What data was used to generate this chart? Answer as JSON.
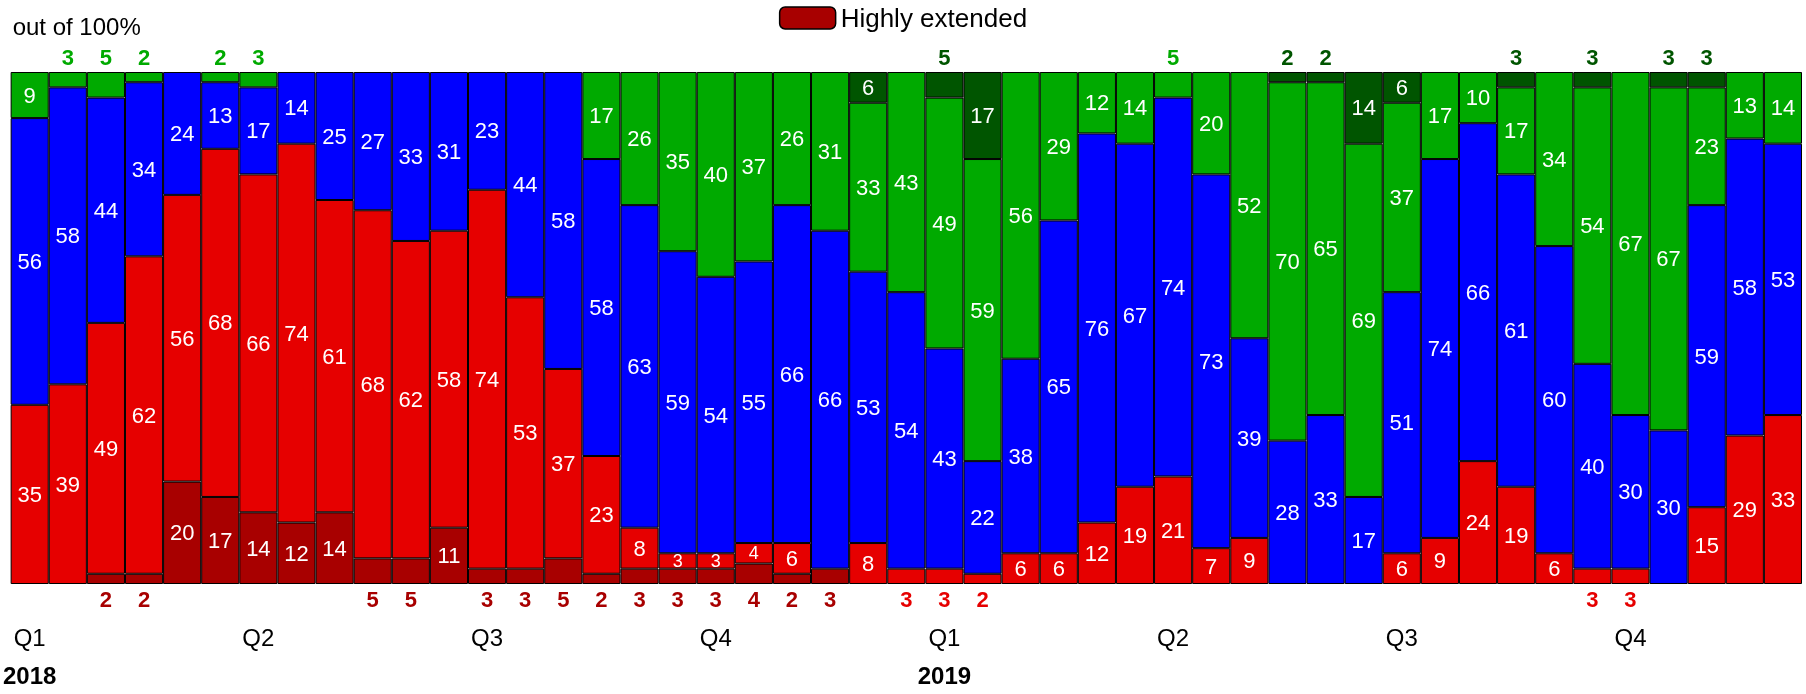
{
  "chart_data": {
    "type": "bar",
    "stacked": true,
    "ylabel": "out of 100%",
    "categories": [
      "Q1\n2018",
      null,
      null,
      null,
      null,
      null,
      "Q2",
      null,
      null,
      null,
      null,
      null,
      "Q3",
      null,
      null,
      null,
      null,
      null,
      "Q4",
      null,
      null,
      null,
      null,
      null,
      "Q1\n2019",
      null,
      null,
      null,
      null,
      null,
      "Q2",
      null,
      null,
      null,
      null,
      null,
      "Q3",
      null,
      null,
      null,
      null,
      null,
      "Q4",
      null,
      null,
      null,
      null
    ],
    "ylim": [
      0,
      100
    ],
    "tick_labels": "x",
    "grid": false,
    "legend": "top",
    "data_labels": true,
    "series": [
      {
        "name": "Highly extended",
        "color": "#a80000",
        "values": [
          null,
          null,
          2,
          2,
          20,
          17,
          14,
          12,
          14,
          5,
          5,
          11,
          3,
          3,
          5,
          2,
          3,
          3,
          3,
          4,
          2,
          3,
          null,
          null,
          null,
          null,
          null,
          null,
          null,
          null,
          null,
          null,
          null,
          null,
          null,
          null,
          null,
          null,
          null,
          null,
          null,
          null,
          null,
          null,
          null,
          null,
          null
        ]
      },
      {
        "color": "#e60000",
        "values": [
          35,
          39,
          49,
          62,
          56,
          68,
          66,
          74,
          61,
          68,
          62,
          58,
          74,
          53,
          37,
          23,
          8,
          3,
          3,
          4,
          6,
          null,
          8,
          3,
          3,
          2,
          6,
          6,
          12,
          19,
          21,
          7,
          9,
          null,
          null,
          null,
          6,
          9,
          24,
          19,
          6,
          3,
          3,
          null,
          15,
          29,
          33
        ]
      },
      {
        "color": "#0000ff",
        "values": [
          56,
          58,
          44,
          34,
          24,
          13,
          17,
          14,
          25,
          27,
          33,
          31,
          23,
          44,
          58,
          58,
          63,
          59,
          54,
          55,
          66,
          66,
          53,
          54,
          43,
          22,
          38,
          65,
          76,
          67,
          74,
          73,
          39,
          28,
          33,
          17,
          51,
          74,
          66,
          61,
          60,
          40,
          30,
          30,
          59,
          58,
          53
        ]
      },
      {
        "color": "#00aa00",
        "values": [
          9,
          3,
          5,
          2,
          null,
          2,
          3,
          null,
          null,
          null,
          null,
          null,
          null,
          null,
          null,
          17,
          26,
          35,
          40,
          37,
          26,
          31,
          33,
          43,
          49,
          59,
          56,
          29,
          12,
          14,
          5,
          20,
          52,
          70,
          65,
          69,
          37,
          17,
          10,
          17,
          34,
          54,
          67,
          67,
          23,
          13,
          14
        ]
      },
      {
        "color": "#005500",
        "values": [
          null,
          null,
          null,
          null,
          null,
          null,
          null,
          null,
          null,
          null,
          null,
          null,
          null,
          null,
          null,
          null,
          null,
          null,
          null,
          null,
          null,
          null,
          6,
          null,
          5,
          17,
          null,
          null,
          null,
          null,
          null,
          null,
          null,
          2,
          2,
          14,
          6,
          null,
          null,
          3,
          null,
          3,
          null,
          3,
          3,
          null,
          null
        ]
      }
    ]
  }
}
